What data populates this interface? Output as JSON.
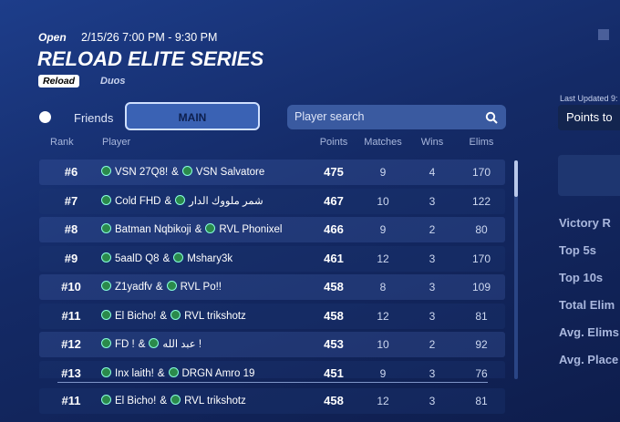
{
  "header": {
    "status": "Open",
    "date": "2/15/26 7:00 PM - 9:30 PM",
    "title": "RELOAD ELITE SERIES",
    "mode": "Reload",
    "team": "Duos"
  },
  "tabs": {
    "friends": "Friends",
    "main": "MAIN",
    "search": "Player search"
  },
  "table": {
    "columns": [
      "Rank",
      "Player",
      "Points",
      "Matches",
      "Wins",
      "Elims"
    ],
    "join": "&",
    "rows": [
      [
        "#6",
        [
          "VSN 27Q8!",
          "VSN Salvatore"
        ],
        475,
        9,
        4,
        170
      ],
      [
        "#7",
        [
          "Cold FHD",
          "شمر ملووك الدار"
        ],
        467,
        10,
        3,
        122
      ],
      [
        "#8",
        [
          "Batman Nqbikoji",
          "RVL Phonixel"
        ],
        466,
        9,
        2,
        80
      ],
      [
        "#9",
        [
          "5aalD Q8",
          "Mshary3k"
        ],
        461,
        12,
        3,
        170
      ],
      [
        "#10",
        [
          "Z1yadfv",
          "RVL Po!!"
        ],
        458,
        8,
        3,
        109
      ],
      [
        "#11",
        [
          "El Bicho!",
          "RVL trikshotz"
        ],
        458,
        12,
        3,
        81
      ],
      [
        "#12",
        [
          "FD !",
          "عبد الله !"
        ],
        453,
        10,
        2,
        92
      ],
      [
        "#13",
        [
          "Inx laith!",
          "DRGN Amro 19"
        ],
        451,
        9,
        3,
        76
      ]
    ],
    "pinned": [
      "#11",
      [
        "El Bicho!",
        "RVL trikshotz"
      ],
      458,
      12,
      3,
      81
    ]
  },
  "side": {
    "updated": "Last Updated 9:",
    "sort": "Points to",
    "stats": [
      "Victory R",
      "Top 5s",
      "Top 10s",
      "Total Elim",
      "Avg. Elims",
      "Avg. Place"
    ]
  }
}
